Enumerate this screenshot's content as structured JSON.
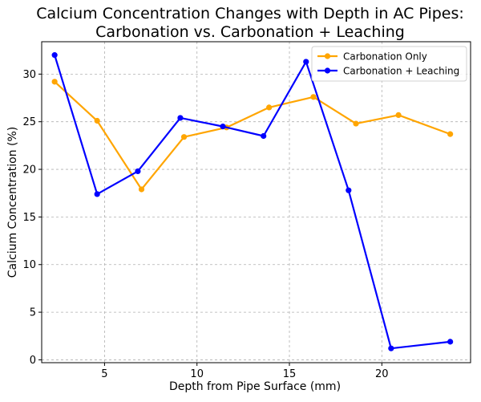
{
  "chart_data": {
    "type": "line",
    "title": "Calcium Concentration Changes with Depth in AC Pipes:\nCarbonation vs. Carbonation + Leaching",
    "title_lines": [
      "Calcium Concentration Changes with Depth in AC Pipes:",
      "Carbonation vs. Carbonation + Leaching"
    ],
    "xlabel": "Depth from Pipe Surface (mm)",
    "ylabel": "Calcium Concentration (%)",
    "xlim": [
      1.6,
      24.8
    ],
    "ylim": [
      -0.3,
      33.4
    ],
    "xticks": [
      5,
      10,
      15,
      20
    ],
    "yticks": [
      0,
      5,
      10,
      15,
      20,
      25,
      30
    ],
    "grid": true,
    "legend_position": "top-right",
    "series": [
      {
        "name": "Carbonation Only",
        "color": "#FFA500",
        "x": [
          2.3,
          4.6,
          7.0,
          9.3,
          11.6,
          13.9,
          16.3,
          18.6,
          20.9,
          23.7
        ],
        "y": [
          29.2,
          25.1,
          17.9,
          23.4,
          24.4,
          26.5,
          27.6,
          24.8,
          25.7,
          23.7
        ]
      },
      {
        "name": "Carbonation + Leaching",
        "color": "#0000FF",
        "x": [
          2.3,
          4.6,
          6.8,
          9.1,
          11.4,
          13.6,
          15.9,
          18.2,
          20.5,
          23.7
        ],
        "y": [
          32.0,
          17.4,
          19.8,
          25.4,
          24.5,
          23.5,
          31.3,
          17.8,
          1.2,
          1.9
        ]
      }
    ]
  }
}
